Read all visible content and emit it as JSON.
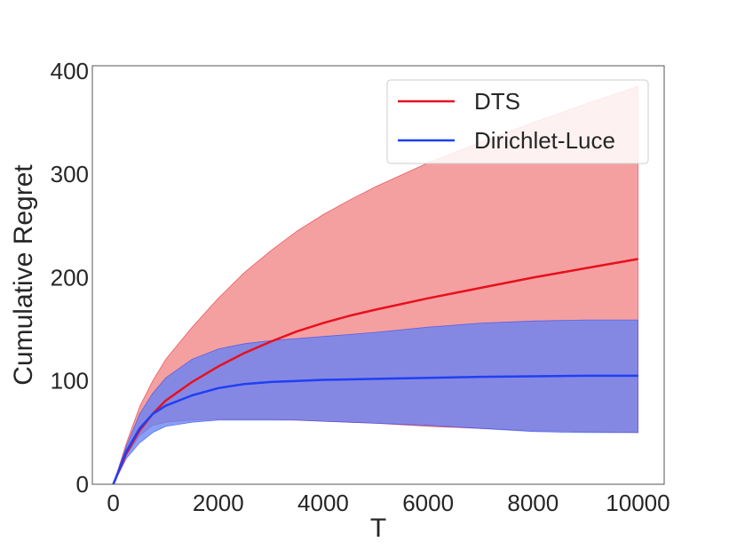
{
  "chart_data": {
    "type": "line",
    "xlabel": "T",
    "ylabel": "Cumulative Regret",
    "xlim": [
      -400,
      10500
    ],
    "ylim": [
      0,
      405
    ],
    "xticks": [
      0,
      2000,
      4000,
      6000,
      8000,
      10000
    ],
    "yticks": [
      0,
      100,
      200,
      300,
      400
    ],
    "grid": false,
    "legend_position": "top-right",
    "series": [
      {
        "name": "DTS",
        "color": "#e8101e",
        "band_color": "#f08080",
        "x": [
          0,
          250,
          500,
          750,
          1000,
          1500,
          2000,
          2500,
          3000,
          3500,
          4000,
          4500,
          5000,
          6000,
          7000,
          8000,
          9000,
          10000
        ],
        "mean": [
          0,
          30,
          52,
          68,
          81,
          99,
          114,
          127,
          138,
          148,
          156,
          163,
          169,
          180,
          190,
          200,
          209,
          218
        ],
        "upper": [
          0,
          40,
          75,
          100,
          121,
          152,
          180,
          205,
          226,
          245,
          261,
          275,
          288,
          311,
          331,
          350,
          368,
          385
        ],
        "lower": [
          0,
          28,
          47,
          57,
          60,
          62,
          63,
          63,
          63,
          62,
          61,
          60,
          59,
          56,
          54,
          52,
          51,
          50
        ]
      },
      {
        "name": "Dirichlet-Luce",
        "color": "#1f3ff5",
        "band_color": "#6080f8",
        "x": [
          0,
          250,
          500,
          750,
          1000,
          1500,
          2000,
          2500,
          3000,
          3500,
          4000,
          4500,
          5000,
          6000,
          7000,
          8000,
          9000,
          10000
        ],
        "mean": [
          0,
          32,
          54,
          68,
          76,
          86,
          93,
          97,
          99,
          100,
          101,
          101.5,
          102,
          103,
          104,
          104.5,
          105,
          105
        ],
        "upper": [
          0,
          37,
          68,
          88,
          103,
          121,
          131,
          136,
          139,
          141,
          143,
          145,
          147,
          152,
          156,
          158,
          159,
          159
        ],
        "lower": [
          0,
          25,
          40,
          50,
          56,
          60,
          62,
          62,
          62,
          62,
          61,
          60,
          59,
          57,
          54,
          51,
          50,
          50
        ]
      }
    ]
  }
}
